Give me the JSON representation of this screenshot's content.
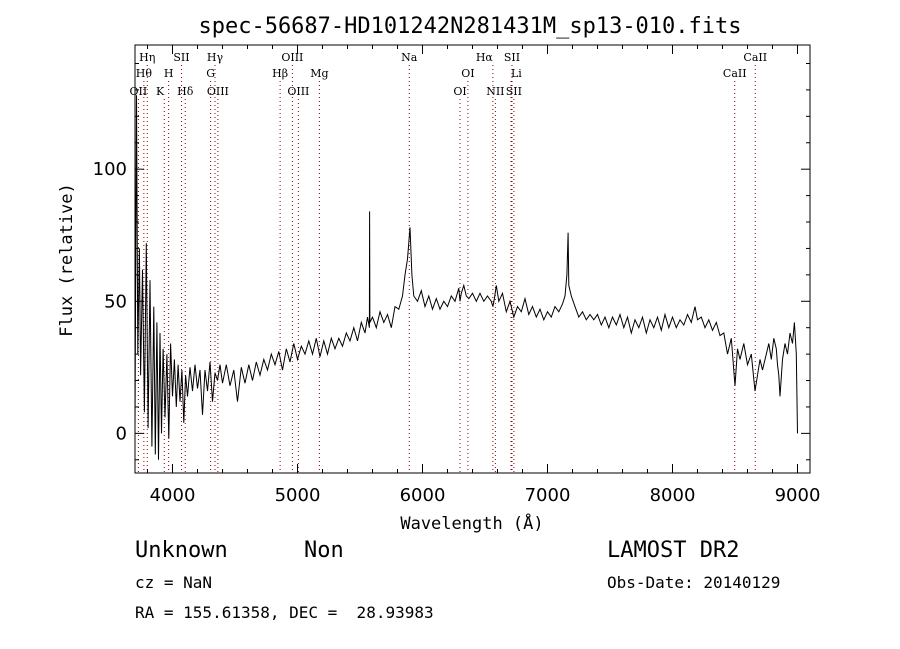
{
  "chart_data": {
    "type": "line",
    "title": "spec-56687-HD101242N281431M_sp13-010.fits",
    "xlabel": "Wavelength (Å)",
    "ylabel": "Flux (relative)",
    "xlim": [
      3700,
      9100
    ],
    "ylim": [
      -15,
      147
    ],
    "xticks": [
      4000,
      5000,
      6000,
      7000,
      8000,
      9000
    ],
    "yticks": [
      0,
      50,
      100
    ],
    "grid": false,
    "line_color": "#000000",
    "marker_color": "#8b0000",
    "series": [
      {
        "values_xy": [
          [
            3700,
            2
          ],
          [
            3712,
            128
          ],
          [
            3722,
            30
          ],
          [
            3735,
            70
          ],
          [
            3745,
            22
          ],
          [
            3760,
            62
          ],
          [
            3775,
            8
          ],
          [
            3790,
            72
          ],
          [
            3805,
            2
          ],
          [
            3820,
            58
          ],
          [
            3835,
            -5
          ],
          [
            3850,
            48
          ],
          [
            3862,
            -8
          ],
          [
            3875,
            42
          ],
          [
            3888,
            -10
          ],
          [
            3900,
            38
          ],
          [
            3912,
            0
          ],
          [
            3925,
            32
          ],
          [
            3940,
            6
          ],
          [
            3955,
            30
          ],
          [
            3970,
            -2
          ],
          [
            3985,
            34
          ],
          [
            4000,
            14
          ],
          [
            4015,
            28
          ],
          [
            4030,
            10
          ],
          [
            4045,
            26
          ],
          [
            4060,
            12
          ],
          [
            4075,
            24
          ],
          [
            4090,
            4
          ],
          [
            4105,
            22
          ],
          [
            4120,
            14
          ],
          [
            4140,
            25
          ],
          [
            4160,
            16
          ],
          [
            4180,
            26
          ],
          [
            4200,
            17
          ],
          [
            4220,
            24
          ],
          [
            4240,
            7
          ],
          [
            4260,
            24
          ],
          [
            4280,
            16
          ],
          [
            4300,
            27
          ],
          [
            4320,
            12
          ],
          [
            4340,
            23
          ],
          [
            4360,
            20
          ],
          [
            4380,
            26
          ],
          [
            4400,
            19
          ],
          [
            4430,
            26
          ],
          [
            4460,
            18
          ],
          [
            4490,
            24
          ],
          [
            4520,
            12
          ],
          [
            4550,
            25
          ],
          [
            4580,
            19
          ],
          [
            4610,
            26
          ],
          [
            4640,
            20
          ],
          [
            4670,
            27
          ],
          [
            4700,
            22
          ],
          [
            4730,
            28
          ],
          [
            4760,
            24
          ],
          [
            4790,
            30
          ],
          [
            4820,
            26
          ],
          [
            4850,
            31
          ],
          [
            4880,
            24
          ],
          [
            4910,
            32
          ],
          [
            4940,
            27
          ],
          [
            4970,
            34
          ],
          [
            5000,
            28
          ],
          [
            5030,
            33
          ],
          [
            5060,
            30
          ],
          [
            5090,
            35
          ],
          [
            5120,
            30
          ],
          [
            5150,
            36
          ],
          [
            5180,
            29
          ],
          [
            5210,
            35
          ],
          [
            5240,
            30
          ],
          [
            5270,
            36
          ],
          [
            5300,
            32
          ],
          [
            5330,
            36
          ],
          [
            5360,
            33
          ],
          [
            5390,
            38
          ],
          [
            5420,
            35
          ],
          [
            5450,
            40
          ],
          [
            5480,
            35
          ],
          [
            5510,
            42
          ],
          [
            5540,
            38
          ],
          [
            5560,
            44
          ],
          [
            5575,
            40
          ],
          [
            5577,
            84
          ],
          [
            5579,
            42
          ],
          [
            5600,
            44
          ],
          [
            5630,
            40
          ],
          [
            5660,
            46
          ],
          [
            5690,
            42
          ],
          [
            5720,
            45
          ],
          [
            5750,
            40
          ],
          [
            5780,
            48
          ],
          [
            5810,
            47
          ],
          [
            5840,
            52
          ],
          [
            5860,
            60
          ],
          [
            5880,
            66
          ],
          [
            5900,
            78
          ],
          [
            5915,
            60
          ],
          [
            5930,
            52
          ],
          [
            5960,
            50
          ],
          [
            5990,
            54
          ],
          [
            6020,
            48
          ],
          [
            6050,
            52
          ],
          [
            6080,
            47
          ],
          [
            6110,
            51
          ],
          [
            6140,
            47
          ],
          [
            6170,
            50
          ],
          [
            6200,
            48
          ],
          [
            6230,
            52
          ],
          [
            6260,
            50
          ],
          [
            6290,
            55
          ],
          [
            6300,
            50
          ],
          [
            6310,
            53
          ],
          [
            6330,
            56
          ],
          [
            6350,
            52
          ],
          [
            6370,
            51
          ],
          [
            6400,
            53
          ],
          [
            6430,
            50
          ],
          [
            6460,
            53
          ],
          [
            6490,
            50
          ],
          [
            6520,
            52
          ],
          [
            6550,
            50
          ],
          [
            6563,
            48
          ],
          [
            6575,
            51
          ],
          [
            6590,
            56
          ],
          [
            6610,
            50
          ],
          [
            6640,
            53
          ],
          [
            6670,
            46
          ],
          [
            6700,
            50
          ],
          [
            6730,
            44
          ],
          [
            6760,
            48
          ],
          [
            6790,
            46
          ],
          [
            6820,
            51
          ],
          [
            6850,
            45
          ],
          [
            6880,
            48
          ],
          [
            6910,
            44
          ],
          [
            6940,
            47
          ],
          [
            6970,
            43
          ],
          [
            7000,
            46
          ],
          [
            7030,
            44
          ],
          [
            7060,
            48
          ],
          [
            7090,
            46
          ],
          [
            7120,
            49
          ],
          [
            7140,
            52
          ],
          [
            7155,
            60
          ],
          [
            7165,
            76
          ],
          [
            7170,
            56
          ],
          [
            7190,
            52
          ],
          [
            7220,
            48
          ],
          [
            7250,
            44
          ],
          [
            7280,
            46
          ],
          [
            7310,
            43
          ],
          [
            7340,
            45
          ],
          [
            7370,
            43
          ],
          [
            7400,
            45
          ],
          [
            7430,
            41
          ],
          [
            7460,
            44
          ],
          [
            7490,
            40
          ],
          [
            7520,
            44
          ],
          [
            7550,
            41
          ],
          [
            7580,
            45
          ],
          [
            7610,
            40
          ],
          [
            7640,
            44
          ],
          [
            7670,
            38
          ],
          [
            7700,
            43
          ],
          [
            7730,
            40
          ],
          [
            7760,
            44
          ],
          [
            7790,
            38
          ],
          [
            7820,
            43
          ],
          [
            7850,
            40
          ],
          [
            7880,
            44
          ],
          [
            7910,
            39
          ],
          [
            7940,
            45
          ],
          [
            7970,
            40
          ],
          [
            8000,
            44
          ],
          [
            8030,
            40
          ],
          [
            8060,
            43
          ],
          [
            8090,
            41
          ],
          [
            8120,
            45
          ],
          [
            8150,
            42
          ],
          [
            8180,
            48
          ],
          [
            8200,
            43
          ],
          [
            8230,
            44
          ],
          [
            8260,
            40
          ],
          [
            8290,
            43
          ],
          [
            8320,
            39
          ],
          [
            8350,
            42
          ],
          [
            8380,
            37
          ],
          [
            8410,
            38
          ],
          [
            8440,
            30
          ],
          [
            8470,
            36
          ],
          [
            8500,
            18
          ],
          [
            8520,
            32
          ],
          [
            8540,
            28
          ],
          [
            8570,
            34
          ],
          [
            8600,
            26
          ],
          [
            8630,
            30
          ],
          [
            8660,
            16
          ],
          [
            8680,
            22
          ],
          [
            8700,
            28
          ],
          [
            8720,
            24
          ],
          [
            8750,
            30
          ],
          [
            8770,
            34
          ],
          [
            8790,
            28
          ],
          [
            8810,
            36
          ],
          [
            8830,
            32
          ],
          [
            8840,
            26
          ],
          [
            8850,
            22
          ],
          [
            8860,
            14
          ],
          [
            8880,
            28
          ],
          [
            8900,
            34
          ],
          [
            8920,
            30
          ],
          [
            8940,
            38
          ],
          [
            8960,
            34
          ],
          [
            8975,
            42
          ],
          [
            8990,
            30
          ],
          [
            9000,
            0
          ]
        ]
      }
    ],
    "lines": [
      {
        "name": "OII",
        "wl": 3727,
        "row": 3,
        "anchor": "middle"
      },
      {
        "name": "Hη",
        "wl": 3798,
        "row": 1,
        "anchor": "middle"
      },
      {
        "name": "Hθ",
        "wl": 3771,
        "row": 2,
        "anchor": "middle"
      },
      {
        "name": "K",
        "wl": 3934,
        "row": 3,
        "anchor": "end"
      },
      {
        "name": "H",
        "wl": 3969,
        "row": 2,
        "anchor": "middle"
      },
      {
        "name": "SII",
        "wl": 4072,
        "row": 1,
        "anchor": "middle"
      },
      {
        "name": "Hδ",
        "wl": 4102,
        "row": 3,
        "anchor": "middle"
      },
      {
        "name": "Hγ",
        "wl": 4340,
        "row": 1,
        "anchor": "middle"
      },
      {
        "name": "G",
        "wl": 4305,
        "row": 2,
        "anchor": "middle"
      },
      {
        "name": "OIII",
        "wl": 4363,
        "row": 3,
        "anchor": "middle"
      },
      {
        "name": "OIII",
        "wl": 4959,
        "row": 1,
        "anchor": "middle"
      },
      {
        "name": "Hβ",
        "wl": 4861,
        "row": 2,
        "anchor": "middle"
      },
      {
        "name": "OIII",
        "wl": 5007,
        "row": 3,
        "anchor": "middle"
      },
      {
        "name": "Mg",
        "wl": 5175,
        "row": 2,
        "anchor": "middle"
      },
      {
        "name": "Na",
        "wl": 5894,
        "row": 1,
        "anchor": "middle"
      },
      {
        "name": "OI",
        "wl": 6300,
        "row": 3,
        "anchor": "middle"
      },
      {
        "name": "OI",
        "wl": 6363,
        "row": 2,
        "anchor": "middle"
      },
      {
        "name": "Hα",
        "wl": 6563,
        "row": 1,
        "anchor": "end"
      },
      {
        "name": "NII",
        "wl": 6583,
        "row": 3,
        "anchor": "middle"
      },
      {
        "name": "SII",
        "wl": 6716,
        "row": 1,
        "anchor": "middle"
      },
      {
        "name": "Li",
        "wl": 6708,
        "row": 2,
        "anchor": "start"
      },
      {
        "name": "SII",
        "wl": 6731,
        "row": 3,
        "anchor": "middle"
      },
      {
        "name": "CaII",
        "wl": 8498,
        "row": 2,
        "anchor": "middle"
      },
      {
        "name": "CaII",
        "wl": 8662,
        "row": 1,
        "anchor": "middle"
      }
    ]
  },
  "footer": {
    "object_class": "Unknown",
    "object_subclass": "Non",
    "redshift_text": "cz = NaN",
    "coords_text": "RA = 155.61358, DEC =  28.93983",
    "survey": "LAMOST DR2",
    "obs_date_text": "Obs-Date: 20140129"
  }
}
